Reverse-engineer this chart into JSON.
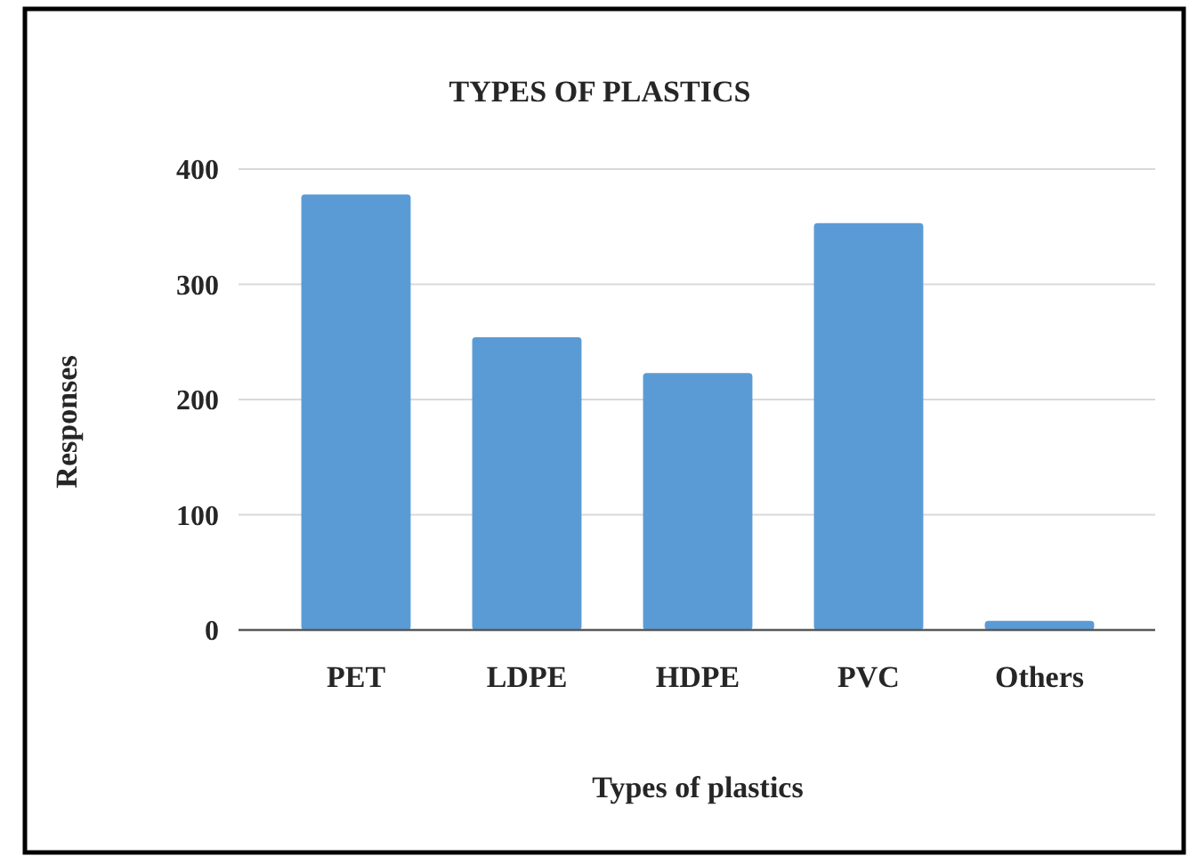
{
  "chart_data": {
    "type": "bar",
    "title": "TYPES OF PLASTICS",
    "xlabel": "Types of plastics",
    "ylabel": "Responses",
    "categories": [
      "PET",
      "LDPE",
      "HDPE",
      "PVC",
      "Others"
    ],
    "values": [
      378,
      254,
      223,
      353,
      8
    ],
    "color": "#5b9bd5",
    "ylim": [
      0,
      400
    ],
    "yticks": [
      0,
      100,
      200,
      300,
      400
    ],
    "grid": "y"
  }
}
